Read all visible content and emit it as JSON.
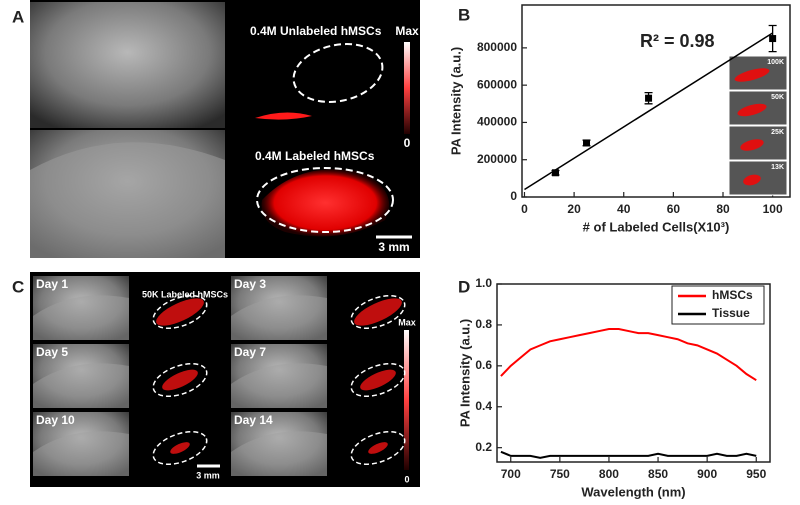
{
  "figure": {
    "panel_labels": [
      "A",
      "B",
      "C",
      "D"
    ],
    "panel_a": {
      "unlabeled": "0.4M Unlabeled hMSCs",
      "labeled": "0.4M Labeled hMSCs",
      "colorbar_max": "Max",
      "colorbar_min": "0",
      "scale_bar": "3 mm"
    },
    "panel_c": {
      "days": [
        "Day 1",
        "Day 3",
        "Day 5",
        "Day 7",
        "Day 10",
        "Day 14"
      ],
      "sample": "50K Labeled hMSCs",
      "colorbar_max": "Max",
      "colorbar_min": "0",
      "scale_bar": "3 mm"
    }
  },
  "chart_data": [
    {
      "type": "scatter",
      "x": [
        12.5,
        25,
        50,
        100
      ],
      "values": [
        130000,
        290000,
        530000,
        850000
      ],
      "errors": [
        12000,
        15000,
        30000,
        70000
      ],
      "color": "#000000",
      "fit": {
        "x": [
          0,
          100
        ],
        "values": [
          40000,
          880000
        ],
        "color": "#000000"
      },
      "annotation": "R² = 0.98",
      "xlabel": "# of Labeled Cells(X10³)",
      "ylabel": "PA Intensity (a.u.)",
      "xlim": [
        -1,
        107
      ],
      "ylim": [
        0,
        1030000
      ],
      "xticks": [
        0,
        20,
        40,
        60,
        80,
        100
      ],
      "yticks": [
        0,
        200000,
        400000,
        600000,
        800000
      ],
      "inset_labels": [
        "100K",
        "50K",
        "25K",
        "13K"
      ]
    },
    {
      "type": "line",
      "x": [
        690,
        700,
        710,
        720,
        730,
        740,
        750,
        760,
        770,
        780,
        790,
        800,
        810,
        820,
        830,
        840,
        850,
        860,
        870,
        880,
        890,
        900,
        910,
        920,
        930,
        940,
        950
      ],
      "series": [
        {
          "name": "hMSCs",
          "color": "#ff0000",
          "values": [
            0.55,
            0.6,
            0.64,
            0.68,
            0.7,
            0.72,
            0.73,
            0.74,
            0.75,
            0.76,
            0.77,
            0.78,
            0.78,
            0.77,
            0.76,
            0.76,
            0.75,
            0.74,
            0.73,
            0.71,
            0.7,
            0.68,
            0.66,
            0.63,
            0.6,
            0.56,
            0.53
          ]
        },
        {
          "name": "Tissue",
          "color": "#000000",
          "values": [
            0.18,
            0.16,
            0.16,
            0.16,
            0.15,
            0.16,
            0.16,
            0.16,
            0.16,
            0.16,
            0.16,
            0.16,
            0.16,
            0.16,
            0.16,
            0.16,
            0.17,
            0.16,
            0.16,
            0.16,
            0.16,
            0.16,
            0.17,
            0.16,
            0.16,
            0.17,
            0.16
          ]
        }
      ],
      "xlabel": "Wavelength (nm)",
      "ylabel": "PA Intensity (a.u.)",
      "xlim": [
        686,
        964
      ],
      "ylim": [
        0.13,
        1.0
      ],
      "xticks": [
        700,
        750,
        800,
        850,
        900,
        950
      ],
      "yticks": [
        0.2,
        0.4,
        0.6,
        0.8,
        {
          "value": 1,
          "label": "1.0"
        }
      ],
      "legend": "upper right"
    }
  ]
}
